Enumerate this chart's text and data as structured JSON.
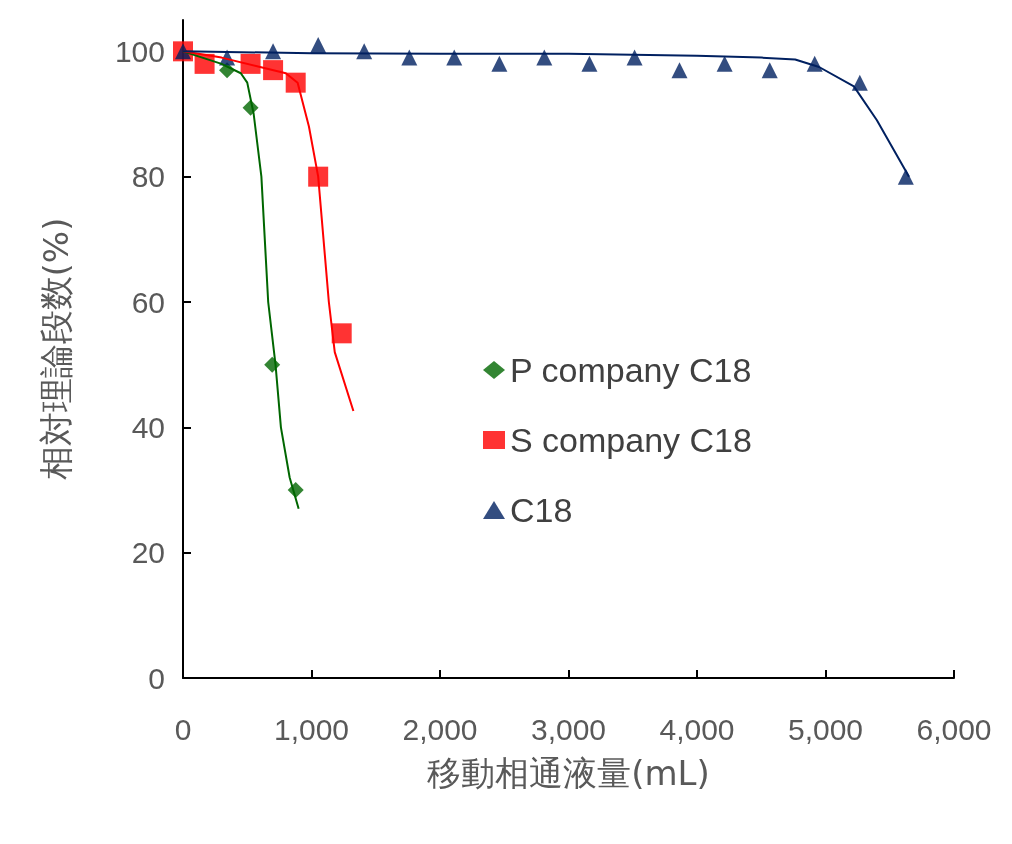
{
  "chart_data": {
    "type": "scatter",
    "xlabel": "移動相通液量(mL)",
    "ylabel": "相対理論段数(%)",
    "xlim": [
      0,
      6000
    ],
    "xticks": [
      0,
      {
        "value": 1000,
        "label": "1,000"
      },
      {
        "value": 2000,
        "label": "2,000"
      },
      {
        "value": 3000,
        "label": "3,000"
      },
      {
        "value": 4000,
        "label": "4,000"
      },
      {
        "value": 5000,
        "label": "5,000"
      },
      {
        "value": 6000,
        "label": "6,000"
      }
    ],
    "ylim": [
      0,
      105
    ],
    "yticks": [
      0,
      20,
      40,
      60,
      80,
      100
    ],
    "grid": false,
    "legend": "center right",
    "series": [
      {
        "name": "P company C18",
        "marker": "diamond",
        "color": "#006600",
        "x": [
          343,
          526,
          694,
          877
        ],
        "values": [
          97,
          91,
          50,
          30
        ]
      },
      {
        "name": "S company C18",
        "marker": "square",
        "color": "#ff0000",
        "x": [
          0,
          168,
          526,
          701,
          877,
          1052,
          1235
        ],
        "values": [
          100,
          98,
          98,
          97,
          95,
          80,
          55
        ]
      },
      {
        "name": "C18",
        "marker": "triangle",
        "color": "#002060",
        "x": [
          0,
          343,
          701,
          1052,
          1410,
          1761,
          2111,
          2462,
          2812,
          3163,
          3514,
          3864,
          4215,
          4566,
          4916,
          5267,
          5625
        ],
        "values": [
          100,
          99,
          100,
          101,
          100,
          99,
          99,
          98,
          99,
          98,
          99,
          97,
          98,
          97,
          98,
          95,
          80
        ]
      },
      {
        "type": "line",
        "marker": "none",
        "color": "#006600",
        "x": [
          0,
          300,
          450,
          500,
          550,
          610,
          663,
          720,
          762,
          830,
          900
        ],
        "values": [
          100,
          98,
          96.5,
          95,
          90,
          80,
          60,
          50,
          40,
          32,
          27
        ]
      },
      {
        "type": "line",
        "marker": "none",
        "color": "#ff0000",
        "x": [
          0,
          300,
          600,
          800,
          892,
          980,
          1052,
          1135,
          1181,
          1326
        ],
        "values": [
          100,
          99,
          97.5,
          96.5,
          95,
          88,
          80,
          60,
          52,
          42.6
        ]
      },
      {
        "type": "line",
        "marker": "none",
        "color": "#002060",
        "x": [
          0,
          1000,
          2000,
          3000,
          4000,
          4500,
          4764,
          4950,
          5221,
          5400,
          5650
        ],
        "values": [
          100,
          99.7,
          99.6,
          99.6,
          99.3,
          99,
          98.7,
          97.5,
          94.4,
          89,
          80
        ]
      }
    ]
  }
}
